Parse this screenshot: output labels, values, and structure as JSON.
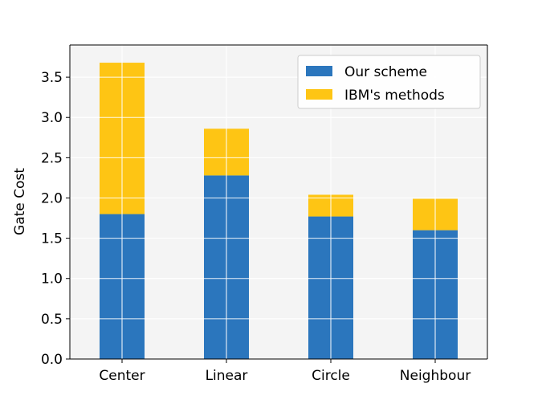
{
  "chart_data": {
    "type": "bar",
    "stacked": true,
    "categories": [
      "Center",
      "Linear",
      "Circle",
      "Neighbour"
    ],
    "series": [
      {
        "name": "Our scheme",
        "values": [
          1.8,
          2.28,
          1.77,
          1.6
        ],
        "color": "#2b76bd"
      },
      {
        "name": "IBM's methods",
        "values": [
          1.88,
          0.58,
          0.27,
          0.39
        ],
        "color": "#fec514"
      }
    ],
    "title": "",
    "xlabel": "",
    "ylabel": "Gate Cost",
    "ylim": [
      0,
      3.9
    ],
    "yticks": [
      "0.0",
      "0.5",
      "1.0",
      "1.5",
      "2.0",
      "2.5",
      "3.0",
      "3.5"
    ],
    "grid": true,
    "legend_position": "top-right",
    "plot_background": "#f4f4f4",
    "grid_color": "#ffffff"
  }
}
